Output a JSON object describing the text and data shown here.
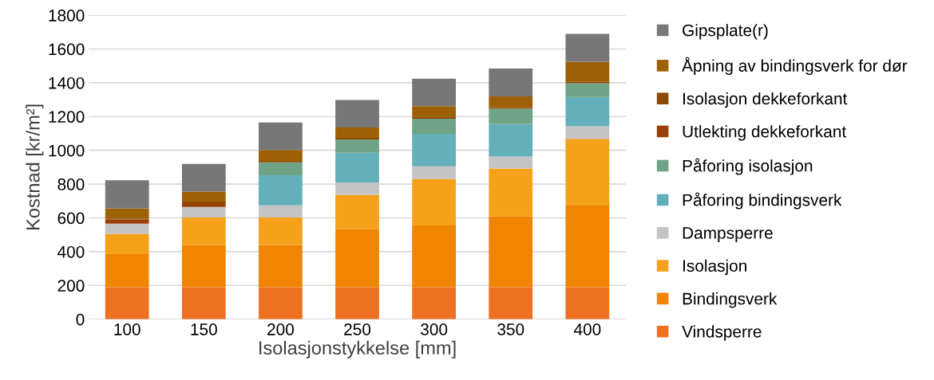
{
  "chart_data": {
    "type": "bar",
    "stacked": true,
    "xlabel": "Isolasjonstykkelse [mm]",
    "ylabel": "Kostnad [kr/m²]",
    "categories": [
      "100",
      "150",
      "200",
      "250",
      "300",
      "350",
      "400"
    ],
    "series": [
      {
        "name": "Vindsperre",
        "color": "#ee7121",
        "values": [
          190,
          190,
          190,
          190,
          190,
          190,
          190
        ]
      },
      {
        "name": "Bindingsverk",
        "color": "#ef8500",
        "values": [
          195,
          249,
          249,
          344,
          365,
          418,
          483
        ]
      },
      {
        "name": "Isolasjon",
        "color": "#f5a11a",
        "values": [
          121,
          163,
          163,
          203,
          276,
          284,
          395
        ]
      },
      {
        "name": "Dampsperre",
        "color": "#c4c4c4",
        "values": [
          60,
          63,
          72,
          73,
          74,
          71,
          74
        ]
      },
      {
        "name": "Påforing bindingsverk",
        "color": "#64b0ba",
        "values": [
          null,
          null,
          178,
          175,
          193,
          193,
          174
        ]
      },
      {
        "name": "Påforing isolasjon",
        "color": "#70a285",
        "values": [
          null,
          null,
          77,
          79,
          89,
          91,
          81
        ]
      },
      {
        "name": "Utlekting dekkeforkant",
        "color": "#9a3f06",
        "values": [
          24,
          22,
          null,
          null,
          null,
          null,
          null
        ]
      },
      {
        "name": "Isolasjon dekkeforkant",
        "color": "#8c4a00",
        "values": [
          6,
          10,
          8,
          10,
          13,
          8,
          11
        ]
      },
      {
        "name": "Åpning av bindingsverk for dør",
        "color": "#9e6004",
        "values": [
          60,
          59,
          65,
          61,
          61,
          64,
          116
        ]
      },
      {
        "name": "Gipsplate(r)",
        "color": "#777777",
        "values": [
          167,
          163,
          163,
          163,
          163,
          165,
          165
        ]
      }
    ],
    "ylim": [
      0,
      1800
    ],
    "yticks": [
      0,
      200,
      400,
      600,
      800,
      1000,
      1200,
      1400,
      1600,
      1800
    ],
    "grid": "y",
    "legend": "right"
  }
}
